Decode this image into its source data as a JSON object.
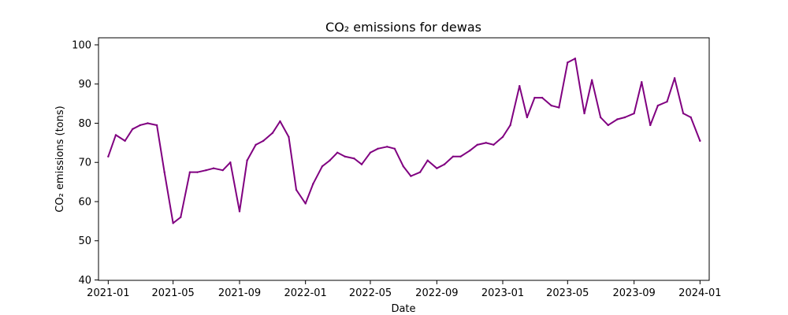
{
  "chart_data": {
    "type": "line",
    "title": "CO₂ emissions for dewas",
    "xlabel": "Date",
    "ylabel": "CO₂ emissions (tons)",
    "ylim": [
      39.9,
      101.8
    ],
    "xlim": [
      "2020-12-14",
      "2024-01-18"
    ],
    "x_ticks": [
      "2021-01",
      "2021-05",
      "2021-09",
      "2022-01",
      "2022-05",
      "2022-09",
      "2023-01",
      "2023-05",
      "2023-09",
      "2024-01"
    ],
    "y_ticks": [
      40,
      50,
      60,
      70,
      80,
      90,
      100
    ],
    "grid": false,
    "legend": "none",
    "series": [
      {
        "color": "#800080",
        "x": [
          "2021-01-01",
          "2021-01-15",
          "2021-02-01",
          "2021-02-15",
          "2021-03-01",
          "2021-03-15",
          "2021-04-01",
          "2021-04-15",
          "2021-05-01",
          "2021-05-15",
          "2021-06-01",
          "2021-06-15",
          "2021-07-01",
          "2021-07-15",
          "2021-08-01",
          "2021-08-15",
          "2021-09-01",
          "2021-09-15",
          "2021-10-01",
          "2021-10-15",
          "2021-11-01",
          "2021-11-15",
          "2021-12-01",
          "2021-12-15",
          "2022-01-01",
          "2022-01-15",
          "2022-02-01",
          "2022-02-15",
          "2022-03-01",
          "2022-03-15",
          "2022-04-01",
          "2022-04-15",
          "2022-05-01",
          "2022-05-15",
          "2022-06-01",
          "2022-06-15",
          "2022-07-01",
          "2022-07-15",
          "2022-08-01",
          "2022-08-15",
          "2022-09-01",
          "2022-09-15",
          "2022-10-01",
          "2022-10-15",
          "2022-11-01",
          "2022-11-15",
          "2022-12-01",
          "2022-12-15",
          "2023-01-01",
          "2023-01-15",
          "2023-02-01",
          "2023-02-15",
          "2023-03-01",
          "2023-03-15",
          "2023-04-01",
          "2023-04-15",
          "2023-05-01",
          "2023-05-15",
          "2023-06-01",
          "2023-06-15",
          "2023-07-01",
          "2023-07-15",
          "2023-08-01",
          "2023-08-15",
          "2023-09-01",
          "2023-09-15",
          "2023-10-01",
          "2023-10-15",
          "2023-11-01",
          "2023-11-15",
          "2023-12-01",
          "2023-12-15",
          "2024-01-01"
        ],
        "y": [
          71.5,
          77,
          75.5,
          78.5,
          79.5,
          80,
          79.5,
          67.5,
          54.5,
          56,
          67.5,
          67.5,
          68,
          68.5,
          68,
          70,
          57.5,
          70.5,
          74.5,
          75.5,
          77.5,
          80.5,
          76.5,
          63,
          59.5,
          64.5,
          69,
          70.5,
          72.5,
          71.5,
          71,
          69.5,
          72.5,
          73.5,
          74,
          73.5,
          69,
          66.5,
          67.5,
          70.5,
          68.5,
          69.5,
          71.5,
          71.5,
          73,
          74.5,
          75,
          74.5,
          76.5,
          79.5,
          89.5,
          81.5,
          86.5,
          86.5,
          84.5,
          84,
          95.5,
          96.5,
          82.5,
          91,
          81.5,
          79.5,
          81,
          81.5,
          82.5,
          90.5,
          79.5,
          84.5,
          85.5,
          91.5,
          82.5,
          81.5,
          75.5
        ]
      }
    ]
  }
}
